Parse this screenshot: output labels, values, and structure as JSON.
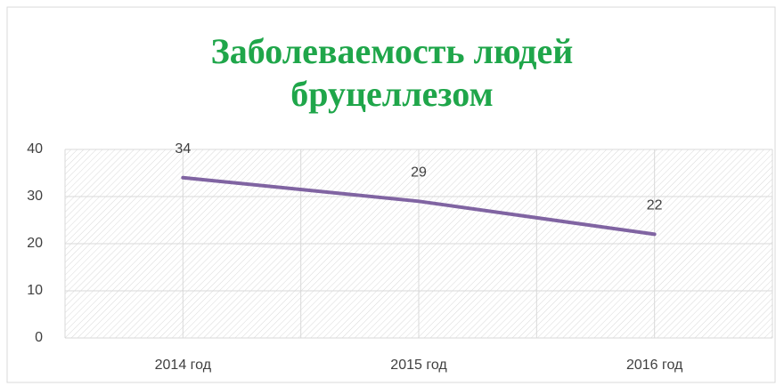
{
  "chart_data": {
    "type": "line",
    "title": "Заболеваемость людей бруцеллезом",
    "categories": [
      "2014 год",
      "2015 год",
      "2016 год"
    ],
    "series": [
      {
        "name": "Заболеваемость",
        "color": "#8064a2",
        "values": [
          34,
          29,
          22
        ]
      }
    ],
    "ylim": [
      0,
      40
    ],
    "yticks": [
      0,
      10,
      20,
      30,
      40
    ],
    "grid": true
  }
}
